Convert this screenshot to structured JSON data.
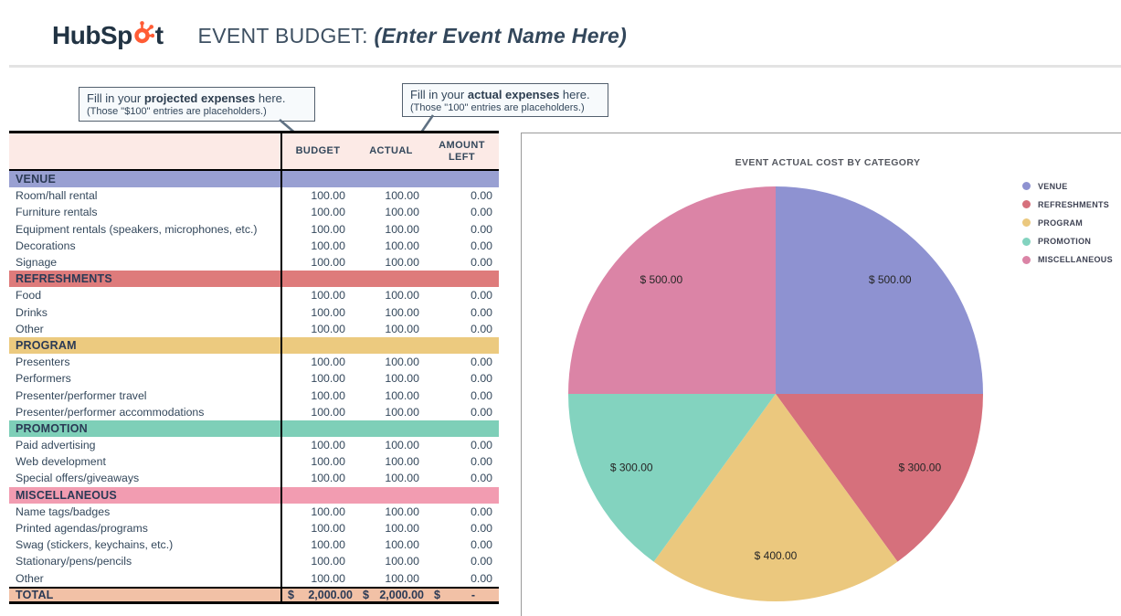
{
  "header": {
    "logo_text_1": "HubSp",
    "logo_text_2": "t",
    "title": "EVENT BUDGET: ",
    "title_em": "(Enter Event Name Here)"
  },
  "callouts": [
    {
      "line1_pre": "Fill in your ",
      "line1_bold": "projected expenses",
      "line1_post": " here.",
      "line2": "(Those \"$100\" entries are placeholders.)"
    },
    {
      "line1_pre": "Fill in your ",
      "line1_bold": "actual expenses",
      "line1_post": " here.",
      "line2": "(Those \"100\" entries are placeholders.)"
    }
  ],
  "table": {
    "columns": [
      "BUDGET",
      "ACTUAL",
      "AMOUNT LEFT"
    ],
    "header_bg": "#fceae6",
    "sections": [
      {
        "name": "VENUE",
        "color": "#99a0d2",
        "items": [
          [
            "Room/hall rental",
            "100.00",
            "100.00",
            "0.00"
          ],
          [
            "Furniture rentals",
            "100.00",
            "100.00",
            "0.00"
          ],
          [
            "Equipment rentals (speakers, microphones, etc.)",
            "100.00",
            "100.00",
            "0.00"
          ],
          [
            "Decorations",
            "100.00",
            "100.00",
            "0.00"
          ],
          [
            "Signage",
            "100.00",
            "100.00",
            "0.00"
          ]
        ]
      },
      {
        "name": "REFRESHMENTS",
        "color": "#de7b7b",
        "items": [
          [
            "Food",
            "100.00",
            "100.00",
            "0.00"
          ],
          [
            "Drinks",
            "100.00",
            "100.00",
            "0.00"
          ],
          [
            "Other",
            "100.00",
            "100.00",
            "0.00"
          ]
        ]
      },
      {
        "name": "PROGRAM",
        "color": "#ecca7f",
        "items": [
          [
            "Presenters",
            "100.00",
            "100.00",
            "0.00"
          ],
          [
            "Performers",
            "100.00",
            "100.00",
            "0.00"
          ],
          [
            "Presenter/performer travel",
            "100.00",
            "100.00",
            "0.00"
          ],
          [
            "Presenter/performer accommodations",
            "100.00",
            "100.00",
            "0.00"
          ]
        ]
      },
      {
        "name": "PROMOTION",
        "color": "#7ecfb8",
        "items": [
          [
            "Paid advertising",
            "100.00",
            "100.00",
            "0.00"
          ],
          [
            "Web development",
            "100.00",
            "100.00",
            "0.00"
          ],
          [
            "Special offers/giveaways",
            "100.00",
            "100.00",
            "0.00"
          ]
        ]
      },
      {
        "name": "MISCELLANEOUS",
        "color": "#f29cb1",
        "items": [
          [
            "Name tags/badges",
            "100.00",
            "100.00",
            "0.00"
          ],
          [
            "Printed agendas/programs",
            "100.00",
            "100.00",
            "0.00"
          ],
          [
            "Swag (stickers, keychains, etc.)",
            "100.00",
            "100.00",
            "0.00"
          ],
          [
            "Stationary/pens/pencils",
            "100.00",
            "100.00",
            "0.00"
          ],
          [
            "Other",
            "100.00",
            "100.00",
            "0.00"
          ]
        ]
      }
    ],
    "total": {
      "label": "TOTAL",
      "currency": "$",
      "budget": "2,000.00",
      "actual": "2,000.00",
      "left": "-",
      "color": "#f2c1a6"
    }
  },
  "chart_data": {
    "type": "pie",
    "title": "EVENT ACTUAL COST BY CATEGORY",
    "categories": [
      "VENUE",
      "REFRESHMENTS",
      "PROGRAM",
      "PROMOTION",
      "MISCELLANEOUS"
    ],
    "values": [
      500,
      300,
      400,
      300,
      500
    ],
    "labels": [
      "$ 500.00",
      "$ 300.00",
      "$ 400.00",
      "$ 300.00",
      "$ 500.00"
    ],
    "colors": [
      "#8e92d1",
      "#d6707c",
      "#ebc87e",
      "#83d3bf",
      "#db84a6"
    ],
    "total": 2000,
    "start_angle_deg": 0,
    "direction": "clockwise",
    "legend_position": "right",
    "label_distance_ratio": 0.78
  },
  "ui_colors": {
    "logo_navy": "#213343",
    "logo_orange": "#ff5c35",
    "table_text": "#33475b",
    "border_black": "#000000"
  }
}
